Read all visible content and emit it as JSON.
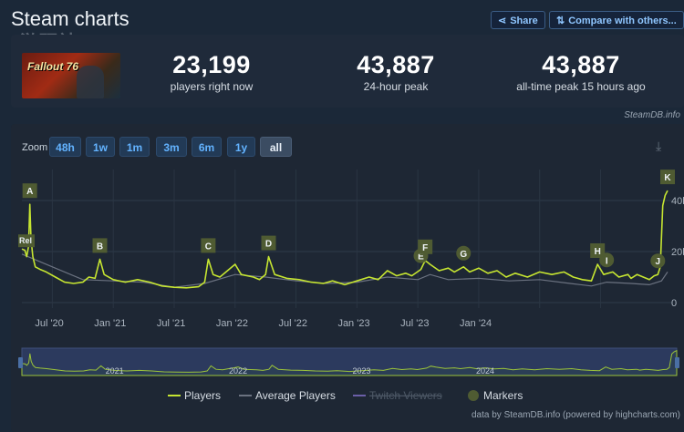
{
  "header": {
    "title": "Steam charts",
    "watermark": "游研社",
    "share_label": "Share",
    "compare_label": "Compare with others..."
  },
  "game": {
    "thumbnail_text": "Fallout 76"
  },
  "stats": [
    {
      "value": "23,199",
      "label": "players right now"
    },
    {
      "value": "43,887",
      "label": "24-hour peak"
    },
    {
      "value": "43,887",
      "label": "all-time peak 15 hours ago"
    }
  ],
  "credit_top": "SteamDB.info",
  "zoom": {
    "label": "Zoom",
    "options": [
      "48h",
      "1w",
      "1m",
      "3m",
      "6m",
      "1y",
      "all"
    ],
    "active": "all"
  },
  "colors": {
    "players": "#c6e531",
    "average": "#6b7280",
    "twitch": "#6b5fa8",
    "markers": "#4f5b32",
    "background": "#1e2734"
  },
  "chart_data": {
    "type": "line",
    "x_ticks": [
      "Jul '20",
      "Jan '21",
      "Jul '21",
      "Jan '22",
      "Jul '22",
      "Jan '23",
      "Jul '23",
      "Jan '24"
    ],
    "y_ticks": [
      "0",
      "20k",
      "40k"
    ],
    "ylim": [
      0,
      45000
    ],
    "navigator_labels": [
      "2021",
      "2022",
      "2023",
      "2024"
    ],
    "series": [
      {
        "name": "Players",
        "points": [
          [
            0,
            21000
          ],
          [
            0.05,
            20500
          ],
          [
            0.08,
            18000
          ],
          [
            0.11,
            22000
          ],
          [
            0.13,
            38500
          ],
          [
            0.15,
            25000
          ],
          [
            0.18,
            18000
          ],
          [
            0.22,
            14000
          ],
          [
            0.3,
            13000
          ],
          [
            0.4,
            12000
          ],
          [
            0.55,
            10000
          ],
          [
            0.7,
            8000
          ],
          [
            0.85,
            7500
          ],
          [
            1.0,
            8000
          ],
          [
            1.1,
            10000
          ],
          [
            1.2,
            9500
          ],
          [
            1.28,
            17000
          ],
          [
            1.35,
            11000
          ],
          [
            1.5,
            9000
          ],
          [
            1.7,
            8000
          ],
          [
            1.9,
            9000
          ],
          [
            2.1,
            8000
          ],
          [
            2.3,
            6500
          ],
          [
            2.5,
            6000
          ],
          [
            2.7,
            5800
          ],
          [
            2.9,
            6200
          ],
          [
            3.0,
            8000
          ],
          [
            3.06,
            17000
          ],
          [
            3.14,
            11000
          ],
          [
            3.25,
            10000
          ],
          [
            3.35,
            12000
          ],
          [
            3.5,
            15000
          ],
          [
            3.6,
            11000
          ],
          [
            3.8,
            10000
          ],
          [
            3.9,
            9000
          ],
          [
            4.0,
            11000
          ],
          [
            4.05,
            18000
          ],
          [
            4.15,
            11000
          ],
          [
            4.35,
            9500
          ],
          [
            4.55,
            9000
          ],
          [
            4.75,
            8000
          ],
          [
            4.95,
            7500
          ],
          [
            5.1,
            8500
          ],
          [
            5.3,
            7000
          ],
          [
            5.5,
            8500
          ],
          [
            5.7,
            10000
          ],
          [
            5.85,
            9000
          ],
          [
            6.0,
            12500
          ],
          [
            6.15,
            10500
          ],
          [
            6.3,
            11500
          ],
          [
            6.4,
            10500
          ],
          [
            6.55,
            13000
          ],
          [
            6.62,
            16500
          ],
          [
            6.7,
            15000
          ],
          [
            6.85,
            12500
          ],
          [
            7.0,
            13500
          ],
          [
            7.1,
            12000
          ],
          [
            7.25,
            14000
          ],
          [
            7.35,
            12000
          ],
          [
            7.5,
            13500
          ],
          [
            7.65,
            11500
          ],
          [
            7.8,
            12500
          ],
          [
            7.95,
            10000
          ],
          [
            8.1,
            11500
          ],
          [
            8.3,
            10000
          ],
          [
            8.5,
            12000
          ],
          [
            8.7,
            11000
          ],
          [
            8.9,
            12000
          ],
          [
            9.05,
            10000
          ],
          [
            9.2,
            9000
          ],
          [
            9.35,
            8500
          ],
          [
            9.45,
            15000
          ],
          [
            9.55,
            11000
          ],
          [
            9.7,
            12000
          ],
          [
            9.8,
            10000
          ],
          [
            9.95,
            11000
          ],
          [
            10.0,
            9500
          ],
          [
            10.1,
            11000
          ],
          [
            10.2,
            10000
          ],
          [
            10.3,
            9000
          ],
          [
            10.38,
            10500
          ],
          [
            10.44,
            11000
          ],
          [
            10.48,
            14000
          ],
          [
            10.52,
            38000
          ],
          [
            10.56,
            42000
          ],
          [
            10.6,
            43887
          ]
        ]
      },
      {
        "name": "Average Players",
        "points": [
          [
            0,
            19000
          ],
          [
            0.5,
            14000
          ],
          [
            1.0,
            9000
          ],
          [
            1.5,
            8500
          ],
          [
            2.0,
            8000
          ],
          [
            2.5,
            6000
          ],
          [
            3.0,
            7500
          ],
          [
            3.5,
            11000
          ],
          [
            4.0,
            10000
          ],
          [
            4.5,
            8500
          ],
          [
            5.0,
            7500
          ],
          [
            5.5,
            8000
          ],
          [
            6.0,
            10000
          ],
          [
            6.5,
            9000
          ],
          [
            6.7,
            11000
          ],
          [
            7.0,
            9000
          ],
          [
            7.5,
            9500
          ],
          [
            8.0,
            8500
          ],
          [
            8.5,
            9000
          ],
          [
            9.0,
            7500
          ],
          [
            9.35,
            6500
          ],
          [
            9.6,
            8000
          ],
          [
            10.0,
            7500
          ],
          [
            10.3,
            7000
          ],
          [
            10.5,
            8500
          ],
          [
            10.6,
            12000
          ]
        ]
      }
    ],
    "markers": [
      {
        "label": "A",
        "x": 0.13
      },
      {
        "label": "B",
        "x": 1.28
      },
      {
        "label": "C",
        "x": 3.06
      },
      {
        "label": "D",
        "x": 4.05
      },
      {
        "label": "E",
        "x": 6.55
      },
      {
        "label": "F",
        "x": 6.62
      },
      {
        "label": "G",
        "x": 7.25
      },
      {
        "label": "H",
        "x": 9.45
      },
      {
        "label": "I",
        "x": 9.6
      },
      {
        "label": "J",
        "x": 10.44
      },
      {
        "label": "K",
        "x": 10.6
      }
    ],
    "release_marker": "Rel",
    "legend": [
      "Players",
      "Average Players",
      "Twitch Viewers",
      "Markers"
    ],
    "credit": "data by SteamDB.info (powered by highcharts.com)"
  }
}
